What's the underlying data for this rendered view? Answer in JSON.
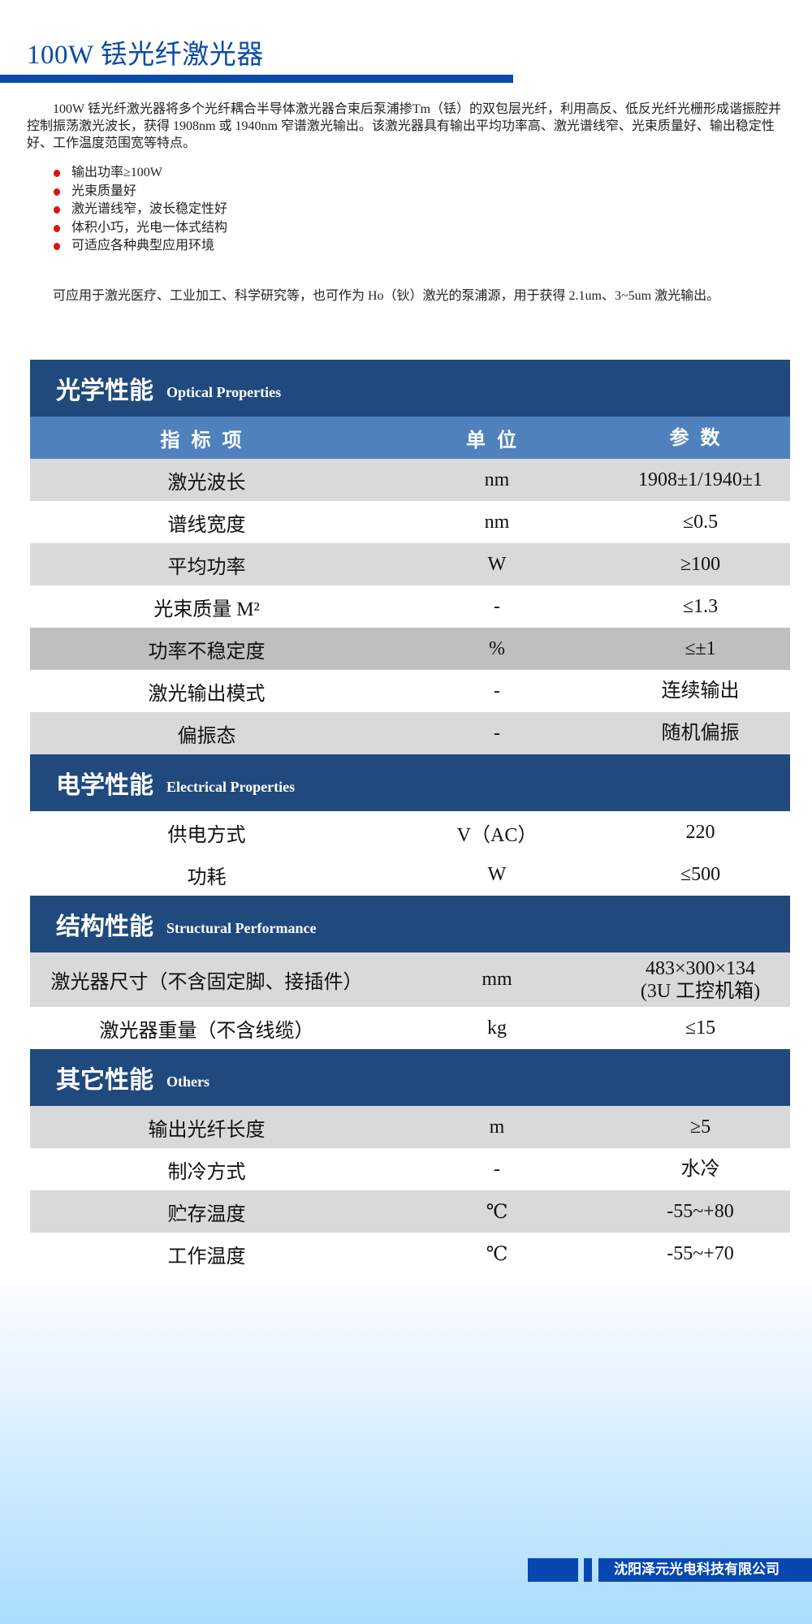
{
  "header": {
    "title": "100W 铥光纤激光器"
  },
  "intro": "100W 铥光纤激光器将多个光纤耦合半导体激光器合束后泵浦掺Tm（铥）的双包层光纤，利用高反、低反光纤光栅形成谐振腔并控制振荡激光波长，获得 1908nm 或 1940nm 窄谱激光输出。该激光器具有输出平均功率高、激光谱线窄、光束质量好、输出稳定性好、工作温度范围宽等特点。",
  "features": [
    "输出功率≥100W",
    "光束质量好",
    "激光谱线窄，波长稳定性好",
    "体积小巧，光电一体式结构",
    "可适应各种典型应用环境"
  ],
  "application": "可应用于激光医疗、工业加工、科学研究等，也可作为 Ho（钬）激光的泵浦源，用于获得 2.1um、3~5um 激光输出。",
  "colors": {
    "brand_blue": "#0b4aa8",
    "section_header": "#204a7e",
    "column_header": "#4f81bd",
    "bullet": "#e01010"
  },
  "table": {
    "columns": [
      "指标项",
      "单位",
      "参数"
    ],
    "sections": [
      {
        "cn": "光学性能",
        "en": "Optical Properties",
        "show_columns": true,
        "rows": [
          {
            "item": "激光波长",
            "unit": "nm",
            "value": "1908±1/1940±1",
            "shade": "g"
          },
          {
            "item": "谱线宽度",
            "unit": "nm",
            "value": "≤0.5",
            "shade": "w"
          },
          {
            "item": "平均功率",
            "unit": "W",
            "value": "≥100",
            "shade": "g"
          },
          {
            "item": "光束质量 M²",
            "unit": "-",
            "value": "≤1.3",
            "shade": "w"
          },
          {
            "item": "功率不稳定度",
            "unit": "%",
            "value": "≤±1",
            "shade": "d"
          },
          {
            "item": "激光输出模式",
            "unit": "-",
            "value": "连续输出",
            "shade": "w"
          },
          {
            "item": "偏振态",
            "unit": "-",
            "value": "随机偏振",
            "shade": "g"
          }
        ]
      },
      {
        "cn": "电学性能",
        "en": "Electrical Properties",
        "rows": [
          {
            "item": "供电方式",
            "unit": "V（AC）",
            "value": "220",
            "shade": "w"
          },
          {
            "item": "功耗",
            "unit": "W",
            "value": "≤500",
            "shade": "w"
          }
        ]
      },
      {
        "cn": "结构性能",
        "en": "Structural Performance",
        "rows": [
          {
            "item": "激光器尺寸（不含固定脚、接插件）",
            "unit": "mm",
            "value": "483×300×134\n(3U 工控机箱)",
            "shade": "g",
            "tall": true
          },
          {
            "item": "激光器重量（不含线缆）",
            "unit": "kg",
            "value": "≤15",
            "shade": "w"
          }
        ]
      },
      {
        "cn": "其它性能",
        "en": "Others",
        "rows": [
          {
            "item": "输出光纤长度",
            "unit": "m",
            "value": "≥5",
            "shade": "g"
          },
          {
            "item": "制冷方式",
            "unit": "-",
            "value": "水冷",
            "shade": "w"
          },
          {
            "item": "贮存温度",
            "unit": "℃",
            "value": "-55~+80",
            "shade": "g"
          },
          {
            "item": "工作温度",
            "unit": "℃",
            "value": "-55~+70",
            "shade": "w"
          }
        ]
      }
    ]
  },
  "footer": {
    "company": "沈阳泽元光电科技有限公司"
  }
}
